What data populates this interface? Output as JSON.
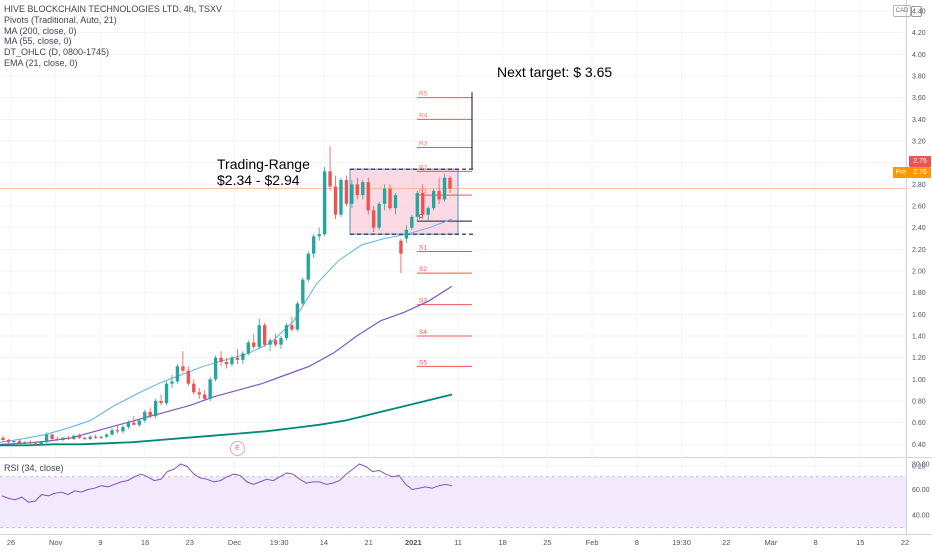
{
  "legend": {
    "symbol": "HIVE BLOCKCHAIN TECHNOLOGIES LTD, 4h, TSXV",
    "indicators": [
      "Pivots (Traditional, Auto, 21)",
      "MA (200, close, 0)",
      "MA (55, close, 0)",
      "DT_OHLC (D, 0800-1745)",
      "EMA (21, close, 0)"
    ]
  },
  "currency": "CAD",
  "rsi_label": "RSI (34, close)",
  "annotations": {
    "range_title": "Trading-Range",
    "range_values": "$2.34 - $2.94",
    "next_target": "Next target: $ 3.65"
  },
  "earnings_marker": "E",
  "price_tags": {
    "last": "2.76",
    "pre_label": "Pre",
    "pre_value": "2.76"
  },
  "colors": {
    "up": "#26a69a",
    "down": "#ef5350",
    "ema21": "#5eb0e5",
    "ma55": "#7e57c2",
    "ma200": "#00897b",
    "pivot": "#f05454",
    "range_fill": "#f8bbd0",
    "range_border": "#4a90d9",
    "rsi": "#7e57c2",
    "rsi_band": "#f3e9fd",
    "last_price": "#ef5350",
    "pre": "#ff9800"
  },
  "chart_data": {
    "type": "candlestick",
    "title": "HIVE BLOCKCHAIN TECHNOLOGIES LTD, 4h, TSXV",
    "ylabel": "CAD",
    "ylim": [
      0.14,
      4.5
    ],
    "y_ticks": [
      4.4,
      4.2,
      4.0,
      3.8,
      3.6,
      3.4,
      3.2,
      3.0,
      2.8,
      2.6,
      2.4,
      2.2,
      2.0,
      1.8,
      1.6,
      1.4,
      1.2,
      1.0,
      0.8,
      0.6,
      0.4,
      0.2
    ],
    "x_ticks": [
      "26",
      "Nov",
      "9",
      "16",
      "23",
      "Dec",
      "19:30",
      "14",
      "21",
      "2021",
      "11",
      "18",
      "25",
      "Feb",
      "8",
      "19:30",
      "22",
      "Mar",
      "8",
      "15",
      "22"
    ],
    "candles": [
      [
        0.46,
        0.48,
        0.42,
        0.44
      ],
      [
        0.44,
        0.45,
        0.41,
        0.42
      ],
      [
        0.42,
        0.44,
        0.4,
        0.43
      ],
      [
        0.43,
        0.45,
        0.41,
        0.41
      ],
      [
        0.41,
        0.43,
        0.39,
        0.42
      ],
      [
        0.42,
        0.44,
        0.4,
        0.41
      ],
      [
        0.41,
        0.42,
        0.39,
        0.4
      ],
      [
        0.4,
        0.43,
        0.39,
        0.42
      ],
      [
        0.42,
        0.51,
        0.41,
        0.49
      ],
      [
        0.49,
        0.5,
        0.44,
        0.45
      ],
      [
        0.45,
        0.47,
        0.43,
        0.44
      ],
      [
        0.44,
        0.47,
        0.43,
        0.46
      ],
      [
        0.46,
        0.48,
        0.44,
        0.45
      ],
      [
        0.45,
        0.49,
        0.44,
        0.48
      ],
      [
        0.48,
        0.5,
        0.45,
        0.46
      ],
      [
        0.46,
        0.47,
        0.44,
        0.45
      ],
      [
        0.45,
        0.48,
        0.44,
        0.47
      ],
      [
        0.47,
        0.49,
        0.45,
        0.46
      ],
      [
        0.46,
        0.48,
        0.45,
        0.47
      ],
      [
        0.47,
        0.5,
        0.46,
        0.49
      ],
      [
        0.49,
        0.55,
        0.48,
        0.53
      ],
      [
        0.53,
        0.57,
        0.5,
        0.52
      ],
      [
        0.52,
        0.58,
        0.5,
        0.56
      ],
      [
        0.56,
        0.62,
        0.54,
        0.6
      ],
      [
        0.6,
        0.66,
        0.58,
        0.58
      ],
      [
        0.58,
        0.64,
        0.56,
        0.62
      ],
      [
        0.62,
        0.72,
        0.6,
        0.7
      ],
      [
        0.7,
        0.74,
        0.64,
        0.66
      ],
      [
        0.66,
        0.82,
        0.64,
        0.8
      ],
      [
        0.8,
        0.86,
        0.76,
        0.78
      ],
      [
        0.78,
        0.98,
        0.76,
        0.96
      ],
      [
        0.96,
        1.04,
        0.92,
        0.98
      ],
      [
        0.98,
        1.14,
        0.96,
        1.12
      ],
      [
        1.12,
        1.26,
        1.06,
        1.08
      ],
      [
        1.08,
        1.12,
        0.94,
        0.96
      ],
      [
        0.96,
        1.0,
        0.86,
        0.88
      ],
      [
        0.88,
        0.92,
        0.82,
        0.86
      ],
      [
        0.86,
        0.9,
        0.8,
        0.82
      ],
      [
        0.82,
        1.02,
        0.8,
        1.0
      ],
      [
        1.0,
        1.22,
        0.98,
        1.2
      ],
      [
        1.2,
        1.26,
        1.12,
        1.16
      ],
      [
        1.16,
        1.2,
        1.1,
        1.14
      ],
      [
        1.14,
        1.22,
        1.12,
        1.2
      ],
      [
        1.2,
        1.28,
        1.14,
        1.18
      ],
      [
        1.18,
        1.26,
        1.14,
        1.24
      ],
      [
        1.24,
        1.36,
        1.22,
        1.34
      ],
      [
        1.34,
        1.42,
        1.28,
        1.3
      ],
      [
        1.3,
        1.56,
        1.28,
        1.5
      ],
      [
        1.5,
        1.52,
        1.3,
        1.32
      ],
      [
        1.32,
        1.38,
        1.26,
        1.36
      ],
      [
        1.36,
        1.42,
        1.3,
        1.32
      ],
      [
        1.32,
        1.4,
        1.28,
        1.38
      ],
      [
        1.38,
        1.52,
        1.36,
        1.5
      ],
      [
        1.5,
        1.58,
        1.44,
        1.46
      ],
      [
        1.46,
        1.72,
        1.44,
        1.7
      ],
      [
        1.7,
        1.94,
        1.68,
        1.92
      ],
      [
        1.92,
        2.18,
        1.9,
        2.16
      ],
      [
        2.16,
        2.34,
        2.12,
        2.32
      ],
      [
        2.32,
        2.4,
        2.28,
        2.34
      ],
      [
        2.34,
        2.96,
        2.32,
        2.92
      ],
      [
        2.92,
        3.15,
        2.74,
        2.78
      ],
      [
        2.78,
        2.88,
        2.48,
        2.52
      ],
      [
        2.52,
        2.86,
        2.5,
        2.84
      ],
      [
        2.84,
        2.88,
        2.6,
        2.62
      ],
      [
        2.62,
        2.84,
        2.58,
        2.8
      ],
      [
        2.8,
        2.86,
        2.66,
        2.7
      ],
      [
        2.7,
        2.84,
        2.66,
        2.82
      ],
      [
        2.82,
        2.86,
        2.52,
        2.56
      ],
      [
        2.56,
        2.6,
        2.36,
        2.4
      ],
      [
        2.4,
        2.64,
        2.38,
        2.62
      ],
      [
        2.62,
        2.8,
        2.56,
        2.76
      ],
      [
        2.76,
        2.8,
        2.56,
        2.58
      ],
      [
        2.58,
        2.72,
        2.52,
        2.7
      ],
      [
        2.28,
        2.3,
        1.98,
        2.16
      ],
      [
        2.3,
        2.42,
        2.26,
        2.38
      ],
      [
        2.4,
        2.52,
        2.38,
        2.5
      ],
      [
        2.5,
        2.74,
        2.46,
        2.72
      ],
      [
        2.72,
        2.8,
        2.48,
        2.52
      ],
      [
        2.52,
        2.6,
        2.46,
        2.58
      ],
      [
        2.58,
        2.76,
        2.56,
        2.74
      ],
      [
        2.74,
        2.86,
        2.62,
        2.66
      ],
      [
        2.66,
        2.9,
        2.64,
        2.86
      ],
      [
        2.86,
        2.88,
        2.72,
        2.76
      ]
    ],
    "series": [
      {
        "name": "EMA (21, close, 0)",
        "values": [
          0.42,
          0.45,
          0.49,
          0.55,
          0.62,
          0.75,
          0.86,
          0.96,
          1.04,
          1.12,
          1.18,
          1.24,
          1.34,
          1.54,
          1.88,
          2.1,
          2.24,
          2.3,
          2.34,
          2.4,
          2.48
        ]
      },
      {
        "name": "MA (55, close, 0)",
        "values": [
          0.4,
          0.41,
          0.43,
          0.46,
          0.52,
          0.58,
          0.64,
          0.7,
          0.76,
          0.84,
          0.9,
          0.96,
          1.04,
          1.12,
          1.24,
          1.4,
          1.54,
          1.62,
          1.72,
          1.86
        ]
      },
      {
        "name": "MA (200, close, 0)",
        "values": [
          0.39,
          0.39,
          0.4,
          0.4,
          0.41,
          0.42,
          0.44,
          0.46,
          0.48,
          0.5,
          0.52,
          0.55,
          0.58,
          0.62,
          0.68,
          0.74,
          0.8,
          0.86
        ]
      }
    ],
    "pivots": [
      {
        "label": "R5",
        "value": 3.6
      },
      {
        "label": "R4",
        "value": 3.4
      },
      {
        "label": "R3",
        "value": 3.14
      },
      {
        "label": "R2",
        "value": 2.92
      },
      {
        "label": "R1",
        "value": 2.7
      },
      {
        "label": "P",
        "value": 2.46
      },
      {
        "label": "S1",
        "value": 2.18
      },
      {
        "label": "S2",
        "value": 1.98
      },
      {
        "label": "S3",
        "value": 1.69
      },
      {
        "label": "S4",
        "value": 1.4
      },
      {
        "label": "S5",
        "value": 1.12
      }
    ],
    "trading_range": [
      2.34,
      2.94
    ],
    "next_target": 3.65,
    "rsi": {
      "name": "RSI (34, close)",
      "ylim": [
        30,
        85
      ],
      "y_ticks": [
        80.0,
        60.0,
        40.0
      ],
      "upper_band": 70,
      "lower_band": 30,
      "values": [
        55,
        53,
        52,
        54,
        50,
        51,
        56,
        55,
        57,
        58,
        56,
        59,
        58,
        60,
        61,
        63,
        62,
        64,
        66,
        67,
        70,
        72,
        70,
        67,
        68,
        74,
        76,
        80,
        78,
        72,
        69,
        68,
        66,
        67,
        70,
        72,
        71,
        66,
        64,
        66,
        68,
        67,
        70,
        73,
        72,
        68,
        65,
        66,
        66,
        64,
        65,
        67,
        72,
        76,
        80,
        78,
        74,
        75,
        72,
        70,
        71,
        64,
        60,
        61,
        62,
        61,
        63,
        64,
        63
      ]
    }
  }
}
